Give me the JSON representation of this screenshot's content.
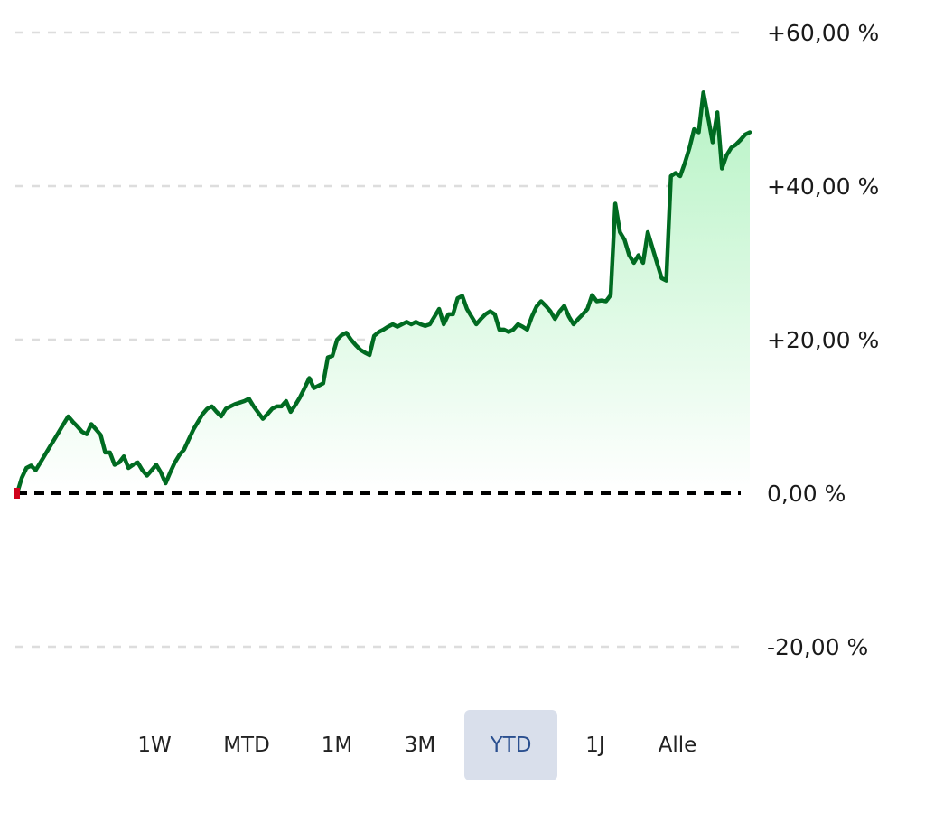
{
  "colors": {
    "line": "#006b21",
    "fill_top": "#b7f3c5",
    "fill_bottom": "#ffffff",
    "baseline": "#000000",
    "grid": "#dddddd",
    "start_marker": "#d0021b",
    "tab_active_bg": "#d9dfeb",
    "tab_active_text": "#2a4f8f"
  },
  "chart_data": {
    "type": "area",
    "ylim": [
      -30,
      60
    ],
    "grid": true,
    "yaxis_position": "right",
    "yticks": [
      {
        "value": 60,
        "label": "+60,00 %"
      },
      {
        "value": 40,
        "label": "+40,00 %"
      },
      {
        "value": 20,
        "label": "+20,00 %"
      },
      {
        "value": 0,
        "label": "0,00 %"
      },
      {
        "value": -20,
        "label": "-20,00 %"
      }
    ],
    "baseline": 0,
    "series": [
      {
        "values": [
          0,
          2,
          3.3,
          3.6,
          3.0,
          4.0,
          5.0,
          6.0,
          7.0,
          8.0,
          9.0,
          10.0,
          9.3,
          8.7,
          8.0,
          7.7,
          9.0,
          8.3,
          7.6,
          5.3,
          5.3,
          3.7,
          4.0,
          4.8,
          3.3,
          3.7,
          4.0,
          3.0,
          2.3,
          3.0,
          3.7,
          2.7,
          1.3,
          2.7,
          4.0,
          5.0,
          5.7,
          7.0,
          8.3,
          9.3,
          10.3,
          11.0,
          11.3,
          10.6,
          10.0,
          11.0,
          11.3,
          11.6,
          11.8,
          12.0,
          12.3,
          11.3,
          10.5,
          9.7,
          10.3,
          11.0,
          11.3,
          11.3,
          12.0,
          10.6,
          11.5,
          12.5,
          13.7,
          15.0,
          13.7,
          14.0,
          14.3,
          17.7,
          17.9,
          20.0,
          20.6,
          20.9,
          20.0,
          19.3,
          18.7,
          18.3,
          18.0,
          20.5,
          21.0,
          21.3,
          21.7,
          22.0,
          21.7,
          22.0,
          22.3,
          22.0,
          22.3,
          22.0,
          21.8,
          22.0,
          23.0,
          24.0,
          22.0,
          23.3,
          23.3,
          25.4,
          25.7,
          24.0,
          23.0,
          22.0,
          22.7,
          23.3,
          23.7,
          23.3,
          21.3,
          21.3,
          21.0,
          21.3,
          22.0,
          21.7,
          21.3,
          23.0,
          24.3,
          25.0,
          24.4,
          23.7,
          22.7,
          23.7,
          24.4,
          23.0,
          22.0,
          22.7,
          23.3,
          24.0,
          25.8,
          25.0,
          25.1,
          25.0,
          25.8,
          37.7,
          34.0,
          33.0,
          31.0,
          30.0,
          31.0,
          30.0,
          34.0,
          32.0,
          30.0,
          28.0,
          27.7,
          41.3,
          41.7,
          41.3,
          43.0,
          45.0,
          47.4,
          47.0,
          52.2,
          49.0,
          45.7,
          49.6,
          42.3,
          44.0,
          45.0,
          45.4,
          46.0,
          46.7,
          47.0
        ]
      }
    ]
  },
  "tabs": {
    "items": [
      {
        "label": "1W",
        "active": false
      },
      {
        "label": "MTD",
        "active": false
      },
      {
        "label": "1M",
        "active": false
      },
      {
        "label": "3M",
        "active": false
      },
      {
        "label": "YTD",
        "active": true
      },
      {
        "label": "1J",
        "active": false
      },
      {
        "label": "Alle",
        "active": false
      }
    ]
  }
}
